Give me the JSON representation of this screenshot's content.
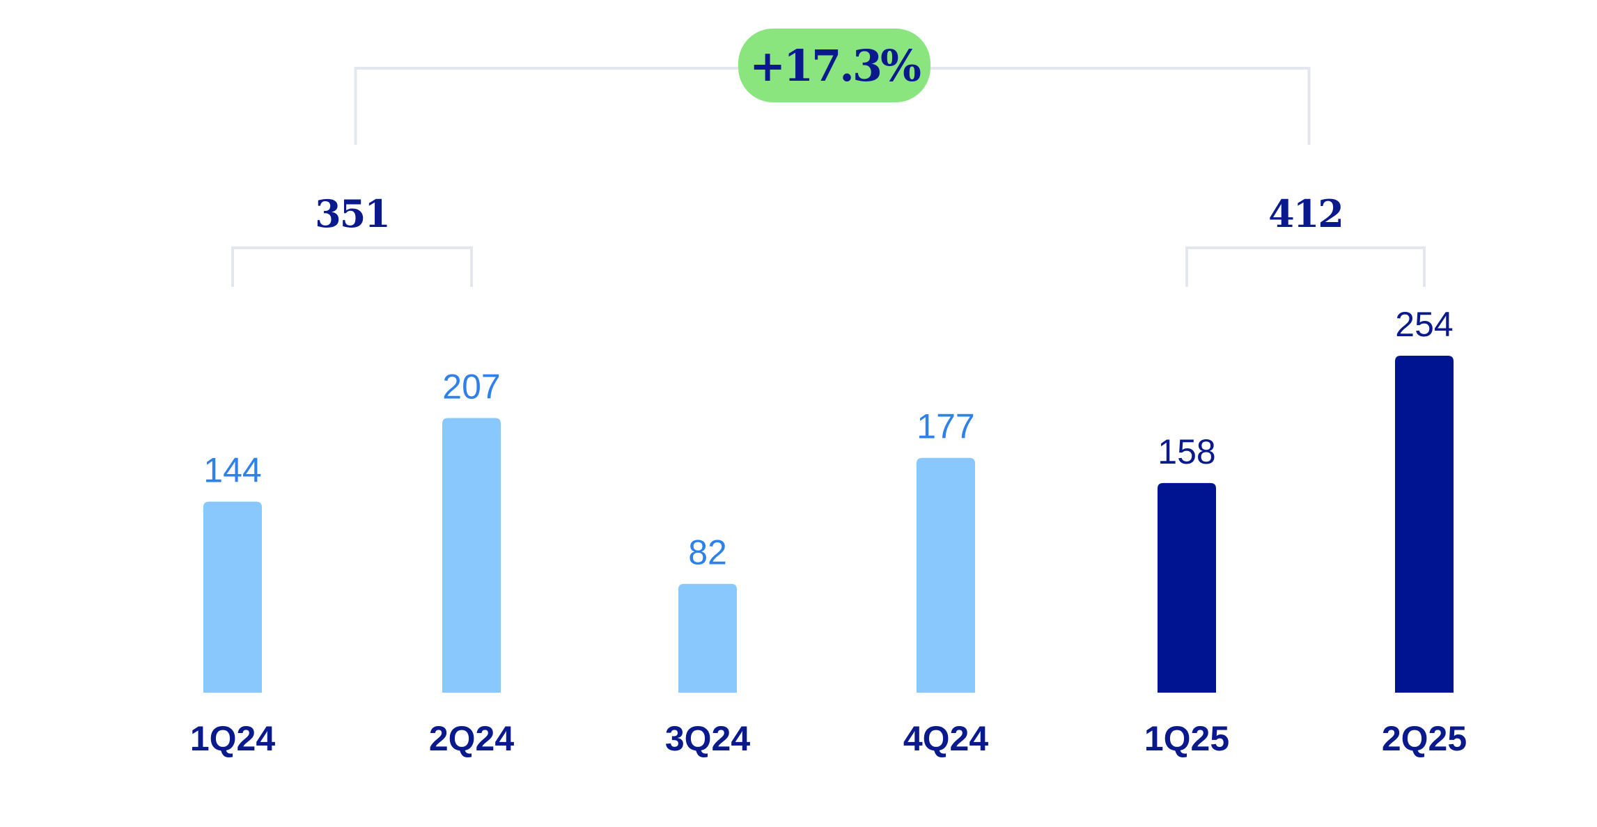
{
  "colors": {
    "bar_2024": "#89c8fd",
    "bar_2025": "#001391",
    "label_2024": "#2e80ea",
    "label_2025": "#0a1a8c",
    "category_text": "#0a1a8c",
    "bracket": "#e3e6ec",
    "growth_badge_bg": "#8ae57f",
    "growth_badge_text": "#0a1a8c"
  },
  "chart_data": {
    "type": "bar",
    "categories": [
      "1Q24",
      "2Q24",
      "3Q24",
      "4Q24",
      "1Q25",
      "2Q25"
    ],
    "values": [
      144,
      207,
      82,
      177,
      158,
      254
    ],
    "data_labels": [
      "144",
      "207",
      "82",
      "177",
      "158",
      "254"
    ],
    "bar_color_groups": [
      "2024",
      "2024",
      "2024",
      "2024",
      "2025",
      "2025"
    ],
    "ylim": [
      0,
      254
    ],
    "grid": false,
    "legend": "none",
    "annotations": {
      "half_year_totals": [
        {
          "label": "351",
          "covers": [
            "1Q24",
            "2Q24"
          ]
        },
        {
          "label": "412",
          "covers": [
            "1Q25",
            "2Q25"
          ]
        }
      ],
      "growth": {
        "label": "+17.3%",
        "from_total": "351",
        "to_total": "412"
      }
    }
  }
}
